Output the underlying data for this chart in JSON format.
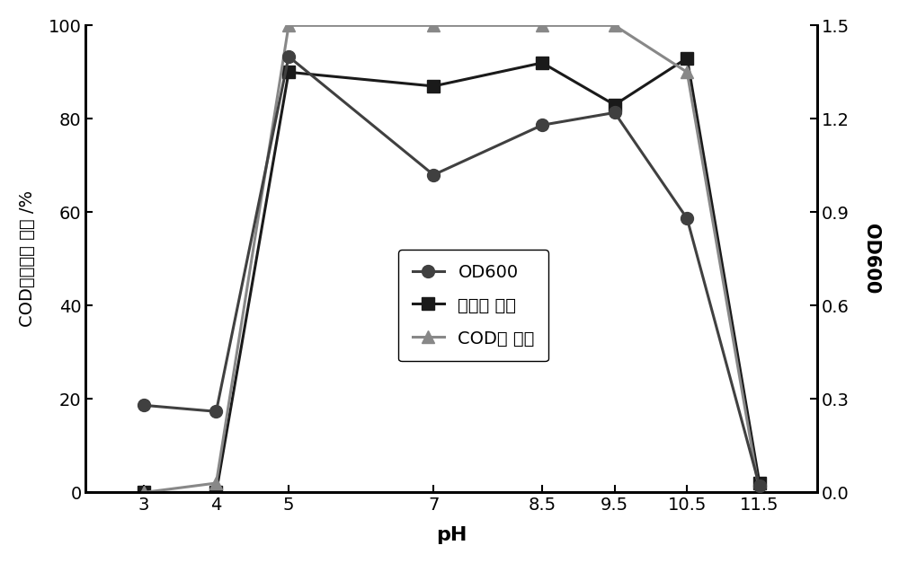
{
  "x_labels": [
    "3",
    "4",
    "5",
    "7",
    "8.5",
    "9.5",
    "10.5",
    "11.5"
  ],
  "x_positions": [
    3,
    4,
    5,
    7,
    8.5,
    9.5,
    10.5,
    11.5
  ],
  "od600": [
    0.28,
    0.26,
    1.4,
    1.02,
    1.18,
    1.22,
    0.88,
    0.02
  ],
  "ammonia_removal": [
    0,
    0,
    90,
    87,
    92,
    83,
    93,
    2
  ],
  "cod_removal": [
    0,
    2,
    100,
    100,
    100,
    100,
    90,
    0
  ],
  "od600_color": "#404040",
  "ammonia_color": "#1a1a1a",
  "cod_color": "#888888",
  "xlabel": "pH",
  "ylabel_left": "COD，氨氮去 除率 /%",
  "ylabel_right": "OD600",
  "legend_od600": "OD600",
  "legend_ammonia": "氨氮去 除率",
  "legend_cod": "COD去 除率",
  "ylim_left": [
    0,
    100
  ],
  "ylim_right": [
    0,
    1.5
  ],
  "yticks_left": [
    0,
    20,
    40,
    60,
    80,
    100
  ],
  "yticks_right": [
    0.0,
    0.3,
    0.6,
    0.9,
    1.2,
    1.5
  ],
  "background_color": "#ffffff",
  "linewidth": 2.2,
  "markersize": 10
}
